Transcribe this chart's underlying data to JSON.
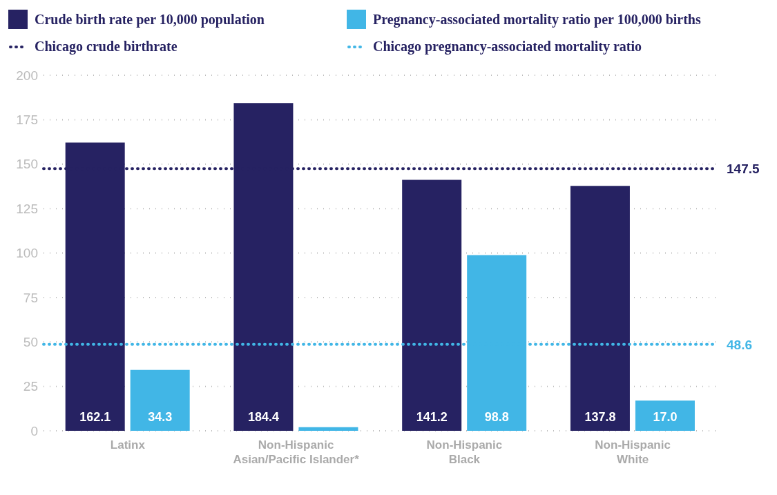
{
  "chart_data": {
    "type": "bar",
    "categories": [
      "Latinx",
      "Non-Hispanic\nAsian/Pacific Islander*",
      "Non-Hispanic\nBlack",
      "Non-Hispanic\nWhite"
    ],
    "series": [
      {
        "name": "Crude birth rate per 10,000 population",
        "color": "#262262",
        "values": [
          162.1,
          184.4,
          141.2,
          137.8
        ],
        "value_labels": [
          "162.1",
          "184.4",
          "141.2",
          "137.8"
        ]
      },
      {
        "name": "Pregnancy-associated mortality ratio per 100,000 births",
        "color": "#41b6e6",
        "values": [
          34.3,
          2,
          98.8,
          17.0
        ],
        "value_labels": [
          "34.3",
          null,
          "98.8",
          "17.0"
        ]
      }
    ],
    "ref_lines": [
      {
        "axis": "y",
        "value": 147.5,
        "label": "Chicago crude birthrate",
        "color": "#262262",
        "line_style": "dotted"
      },
      {
        "axis": "y",
        "value": 48.6,
        "label": "Chicago pregnancy-associated mortality ratio",
        "color": "#41b6e6",
        "line_style": "dotted"
      }
    ],
    "annotations": [
      "147.5",
      "48.6"
    ],
    "ylim": [
      0,
      200
    ],
    "yticks": [
      0,
      25,
      50,
      75,
      100,
      125,
      150,
      175,
      200
    ],
    "grid": "y",
    "legend": "top"
  }
}
